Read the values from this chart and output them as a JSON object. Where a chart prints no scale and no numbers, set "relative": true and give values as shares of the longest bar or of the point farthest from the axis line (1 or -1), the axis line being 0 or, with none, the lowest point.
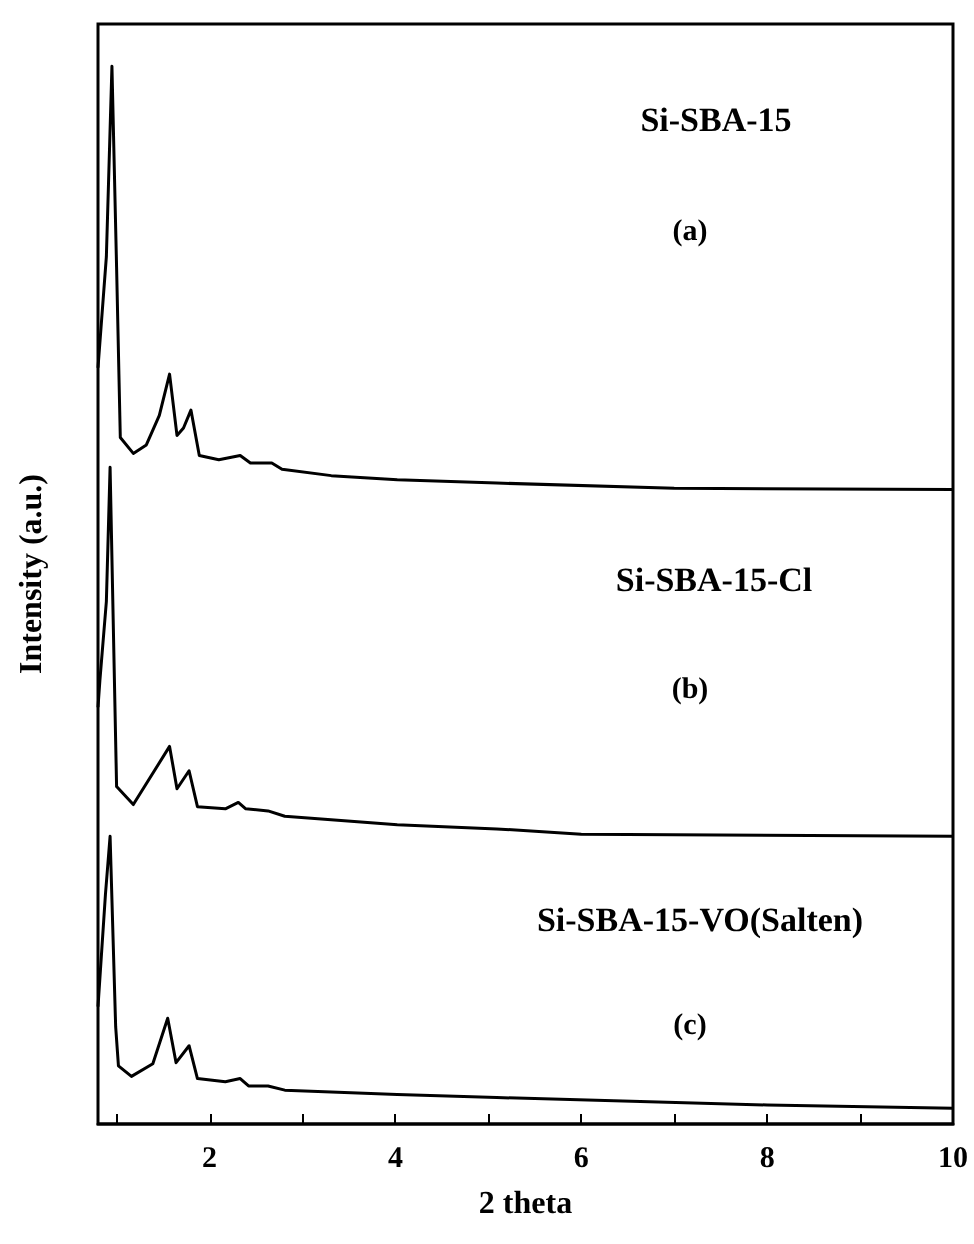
{
  "chart_data": {
    "type": "line",
    "relative": true,
    "xlabel": "2 theta",
    "ylabel": "Intensity (a.u.)",
    "xlim": [
      0.8,
      10
    ],
    "xticks": [
      {
        "value": 1,
        "label": null
      },
      2,
      {
        "value": 3,
        "label": null
      },
      4,
      {
        "value": 5,
        "label": null
      },
      6,
      {
        "value": 7,
        "label": null
      },
      8,
      {
        "value": 9,
        "label": null
      },
      10
    ],
    "marker": "none",
    "line_style": "solid",
    "grid": false,
    "annotations": [
      "Si-SBA-15",
      "(a)",
      "Si-SBA-15-Cl",
      "(b)",
      "Si-SBA-15-VO(Salten)",
      "(c)"
    ],
    "series": [
      {
        "color": "#000000",
        "x": [
          0.8,
          0.89,
          0.95,
          1.0,
          1.04,
          1.18,
          1.32,
          1.46,
          1.57,
          1.65,
          1.72,
          1.8,
          1.89,
          2.1,
          2.33,
          2.44,
          2.67,
          2.78,
          3.31,
          4.02,
          5.09,
          7,
          10
        ],
        "values": [
          0.715,
          0.82,
          1.0,
          0.81,
          0.649,
          0.634,
          0.642,
          0.67,
          0.709,
          0.651,
          0.658,
          0.675,
          0.632,
          0.628,
          0.632,
          0.625,
          0.625,
          0.619,
          0.613,
          0.609,
          0.606,
          0.601,
          0.6
        ]
      },
      {
        "color": "#000000",
        "x": [
          0.8,
          0.82,
          0.89,
          0.93,
          1.0,
          1.18,
          1.57,
          1.65,
          1.78,
          1.87,
          2.17,
          2.31,
          2.39,
          2.63,
          2.81,
          4.02,
          5.09,
          6,
          10
        ],
        "values": [
          0.394,
          0.419,
          0.494,
          0.621,
          0.319,
          0.302,
          0.357,
          0.317,
          0.334,
          0.3,
          0.298,
          0.304,
          0.298,
          0.296,
          0.291,
          0.283,
          0.279,
          0.274,
          0.272
        ]
      },
      {
        "color": "#000000",
        "x": [
          0.8,
          0.88,
          0.93,
          0.99,
          1.02,
          1.16,
          1.39,
          1.55,
          1.64,
          1.78,
          1.87,
          2.17,
          2.33,
          2.42,
          2.63,
          2.81,
          4.02,
          5.09,
          8,
          10
        ],
        "values": [
          0.111,
          0.217,
          0.272,
          0.092,
          0.055,
          0.045,
          0.057,
          0.1,
          0.058,
          0.074,
          0.043,
          0.04,
          0.043,
          0.036,
          0.036,
          0.032,
          0.028,
          0.025,
          0.018,
          0.015
        ]
      }
    ]
  }
}
